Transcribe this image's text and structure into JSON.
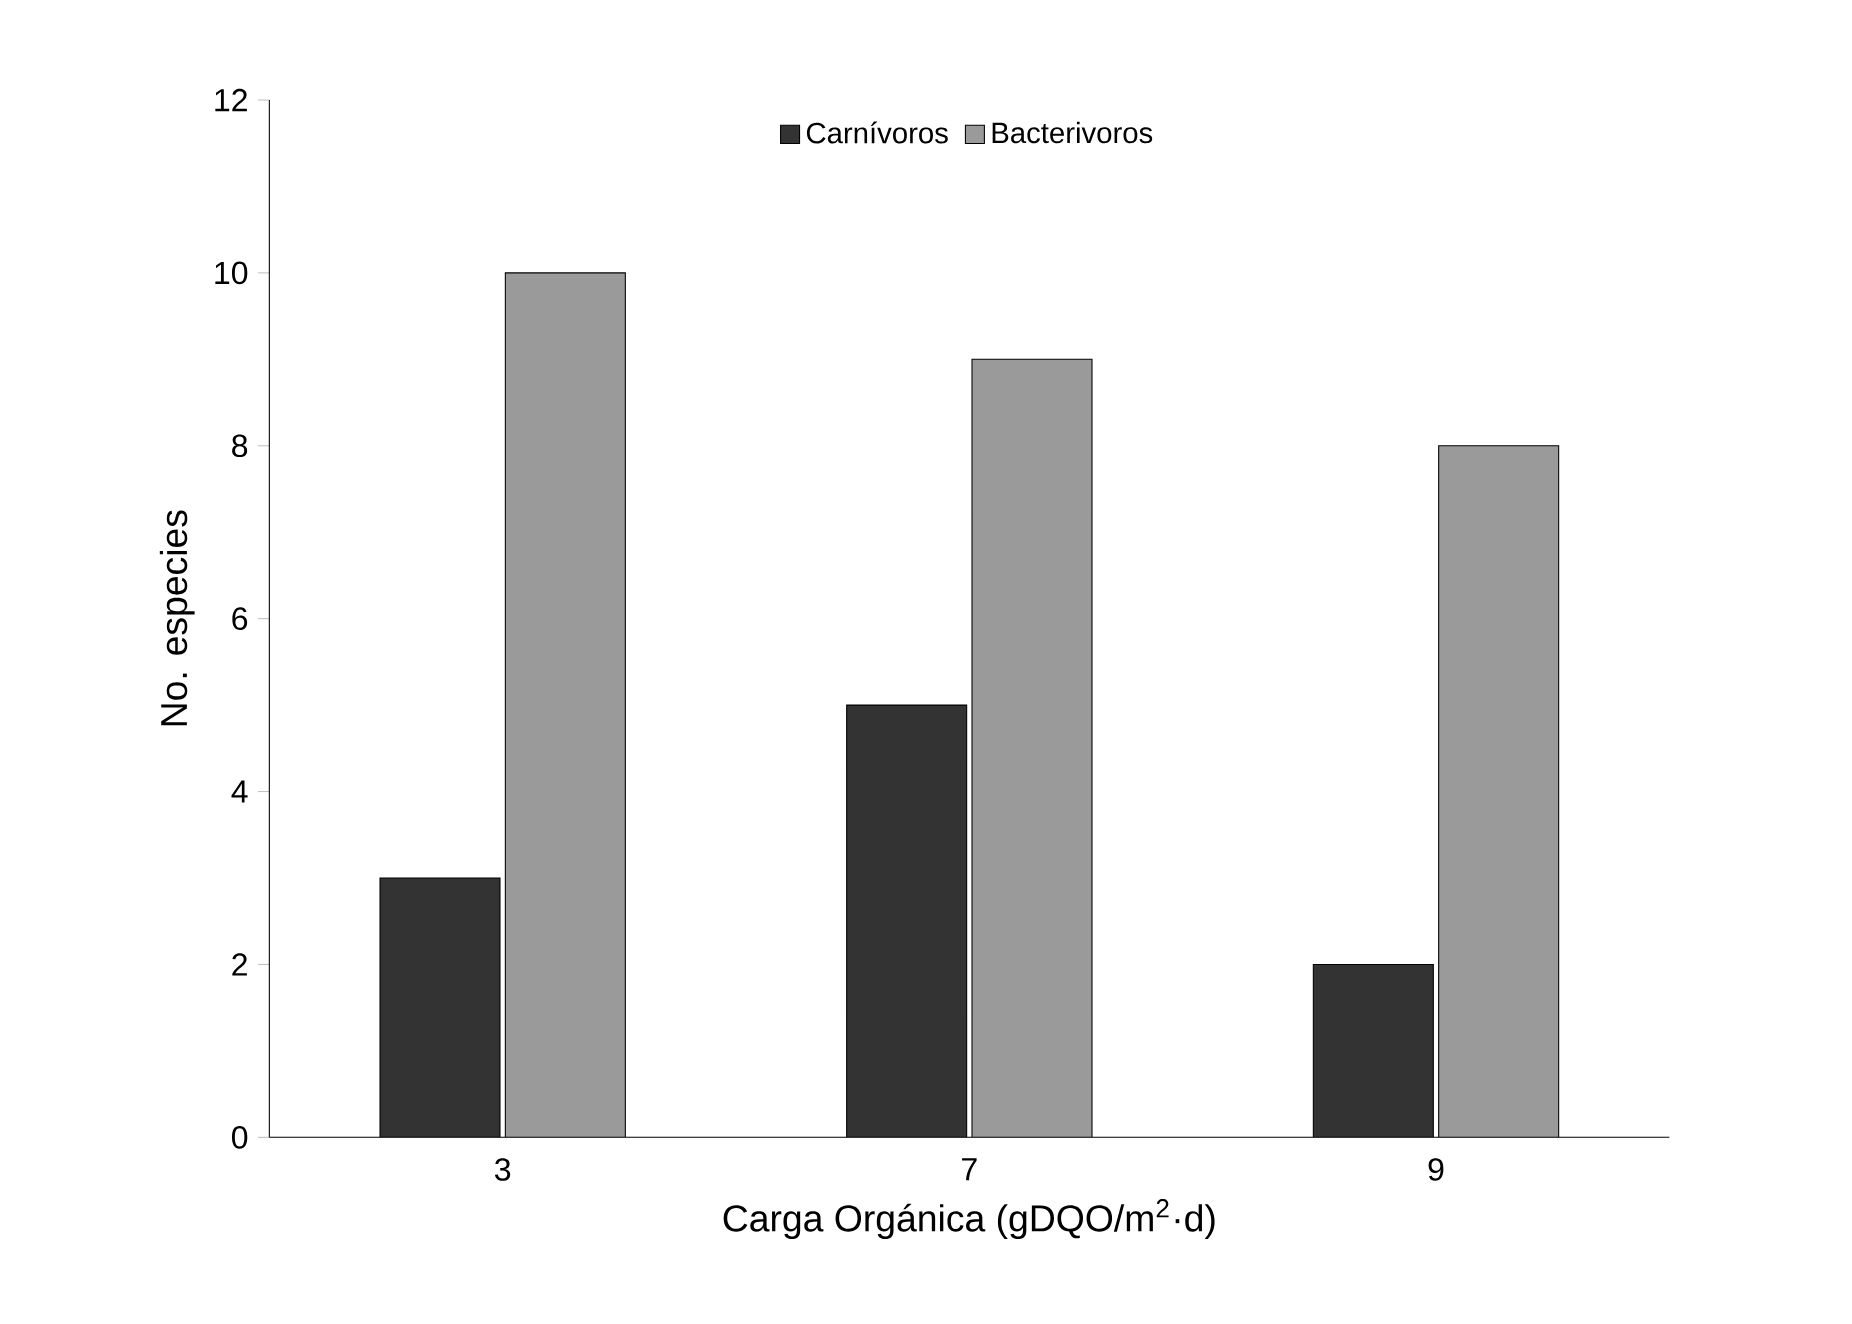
{
  "chart_data": {
    "type": "bar",
    "xlabel": "Carga Orgánica (gDQO/m$^{2}$·d)",
    "ylabel": "No. especies",
    "categories": [
      "3",
      "7",
      "9"
    ],
    "series": [
      {
        "name": "Carnívoros",
        "color": "#333333",
        "values": [
          3,
          5,
          2
        ]
      },
      {
        "name": "Bacterivoros",
        "color": "#9a9a9a",
        "values": [
          10,
          9,
          8
        ]
      }
    ],
    "ylim": [
      0,
      12
    ],
    "yticks": [
      0,
      2,
      4,
      6,
      8,
      10,
      12
    ],
    "grid": false,
    "legend": "top"
  }
}
